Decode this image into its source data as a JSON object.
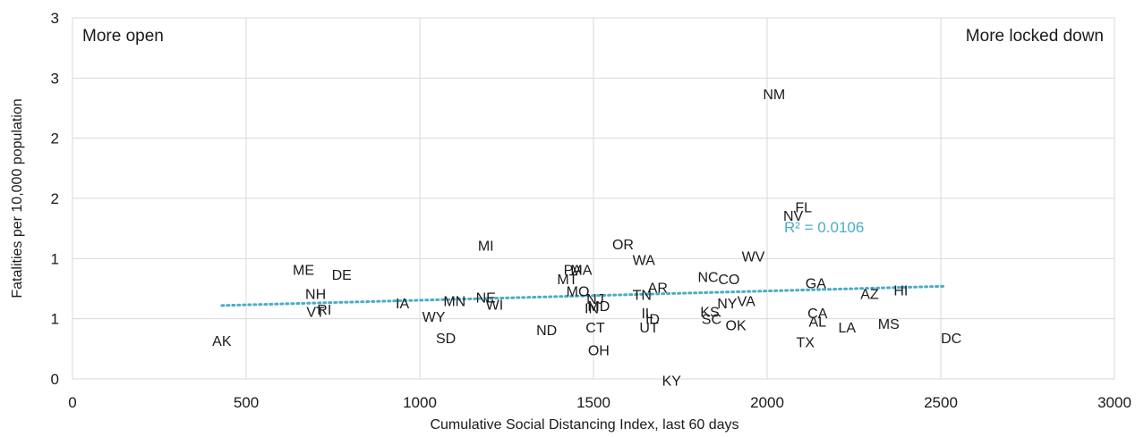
{
  "chart_data": {
    "type": "scatter",
    "xlabel": "Cumulative Social Distancing Index, last 60 days",
    "ylabel": "Fatalities per 10,000 population",
    "xlim": [
      0,
      3000
    ],
    "ylim": [
      0,
      3
    ],
    "x_ticks": [
      0,
      500,
      1000,
      1500,
      2000,
      2500,
      3000
    ],
    "x_tick_labels": [
      "0",
      "500",
      "1000",
      "1500",
      "2000",
      "2500",
      "3000"
    ],
    "y_ticks": [
      0,
      0.5,
      1,
      1.5,
      2,
      2.5,
      3
    ],
    "y_tick_labels": [
      "0",
      "1",
      "1",
      "2",
      "2",
      "3",
      "3"
    ],
    "grid": true,
    "annotations": {
      "top_left": "More open",
      "top_right": "More locked down",
      "r_squared": "R² = 0.0106"
    },
    "trendline": {
      "style": "dotted",
      "color": "#4bacc6",
      "points": [
        [
          430,
          0.61
        ],
        [
          2510,
          0.77
        ]
      ]
    },
    "points": [
      {
        "label": "AK",
        "x": 430,
        "y": 0.32
      },
      {
        "label": "ME",
        "x": 665,
        "y": 0.91
      },
      {
        "label": "DE",
        "x": 775,
        "y": 0.87
      },
      {
        "label": "NH",
        "x": 700,
        "y": 0.71
      },
      {
        "label": "VT",
        "x": 700,
        "y": 0.56
      },
      {
        "label": "RI",
        "x": 725,
        "y": 0.58
      },
      {
        "label": "IA",
        "x": 950,
        "y": 0.63
      },
      {
        "label": "WY",
        "x": 1040,
        "y": 0.52
      },
      {
        "label": "MN",
        "x": 1100,
        "y": 0.65
      },
      {
        "label": "SD",
        "x": 1075,
        "y": 0.34
      },
      {
        "label": "MI",
        "x": 1190,
        "y": 1.11
      },
      {
        "label": "NE",
        "x": 1190,
        "y": 0.68
      },
      {
        "label": "WI",
        "x": 1215,
        "y": 0.62
      },
      {
        "label": "ND",
        "x": 1365,
        "y": 0.41
      },
      {
        "label": "MT",
        "x": 1425,
        "y": 0.83
      },
      {
        "label": "PA",
        "x": 1440,
        "y": 0.91
      },
      {
        "label": "MA",
        "x": 1465,
        "y": 0.91
      },
      {
        "label": "MO",
        "x": 1455,
        "y": 0.73
      },
      {
        "label": "NJ",
        "x": 1505,
        "y": 0.67
      },
      {
        "label": "IN",
        "x": 1495,
        "y": 0.59
      },
      {
        "label": "MD",
        "x": 1515,
        "y": 0.61
      },
      {
        "label": "CT",
        "x": 1505,
        "y": 0.43
      },
      {
        "label": "OH",
        "x": 1515,
        "y": 0.24
      },
      {
        "label": "OR",
        "x": 1585,
        "y": 1.12
      },
      {
        "label": "WA",
        "x": 1645,
        "y": 0.99
      },
      {
        "label": "TN",
        "x": 1640,
        "y": 0.7
      },
      {
        "label": "AR",
        "x": 1685,
        "y": 0.76
      },
      {
        "label": "IL",
        "x": 1655,
        "y": 0.55
      },
      {
        "label": "ID",
        "x": 1670,
        "y": 0.5
      },
      {
        "label": "UT",
        "x": 1660,
        "y": 0.43
      },
      {
        "label": "KY",
        "x": 1725,
        "y": -0.01
      },
      {
        "label": "NC",
        "x": 1830,
        "y": 0.85
      },
      {
        "label": "CO",
        "x": 1890,
        "y": 0.83
      },
      {
        "label": "NY",
        "x": 1885,
        "y": 0.63
      },
      {
        "label": "VA",
        "x": 1940,
        "y": 0.65
      },
      {
        "label": "KS",
        "x": 1835,
        "y": 0.56
      },
      {
        "label": "SC",
        "x": 1840,
        "y": 0.5
      },
      {
        "label": "OK",
        "x": 1910,
        "y": 0.45
      },
      {
        "label": "WV",
        "x": 1960,
        "y": 1.02
      },
      {
        "label": "NM",
        "x": 2020,
        "y": 2.37
      },
      {
        "label": "FL",
        "x": 2105,
        "y": 1.43
      },
      {
        "label": "NV",
        "x": 2075,
        "y": 1.36
      },
      {
        "label": "GA",
        "x": 2140,
        "y": 0.8
      },
      {
        "label": "CA",
        "x": 2145,
        "y": 0.55
      },
      {
        "label": "AL",
        "x": 2145,
        "y": 0.48
      },
      {
        "label": "TX",
        "x": 2110,
        "y": 0.31
      },
      {
        "label": "LA",
        "x": 2230,
        "y": 0.43
      },
      {
        "label": "AZ",
        "x": 2295,
        "y": 0.71
      },
      {
        "label": "HI",
        "x": 2385,
        "y": 0.74
      },
      {
        "label": "MS",
        "x": 2350,
        "y": 0.46
      },
      {
        "label": "DC",
        "x": 2530,
        "y": 0.34
      }
    ]
  }
}
